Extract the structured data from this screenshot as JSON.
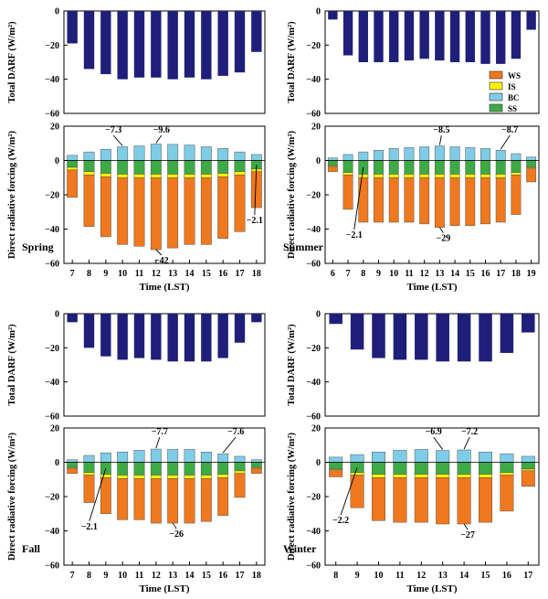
{
  "chart_data": [
    {
      "type": "bar",
      "season": "Spring",
      "x": [
        7,
        8,
        9,
        10,
        11,
        12,
        13,
        14,
        15,
        16,
        17,
        18
      ],
      "xlabel": "Time (LST)",
      "total": {
        "ylabel": "Total DARF (W/m²)",
        "ylim": [
          -60,
          0
        ],
        "yticks": [
          0,
          -20,
          -40,
          -60
        ],
        "values": [
          -19,
          -34,
          -37,
          -40,
          -39,
          -39,
          -40,
          -39,
          -40,
          -38,
          -36,
          -24
        ]
      },
      "components": {
        "ylabel": "Direct radiative forcing (W/m²)",
        "ylim": [
          -60,
          20
        ],
        "yticks": [
          20,
          0,
          -20,
          -40,
          -60
        ],
        "series": [
          {
            "name": "WS",
            "values": [
              -16,
              -30,
              -35,
              -39,
              -40,
              -42,
              -41,
              -39,
              -39,
              -36,
              -33,
              -21
            ]
          },
          {
            "name": "IS",
            "values": [
              -1.5,
              -2,
              -2,
              -2,
              -2,
              -2,
              -2,
              -2,
              -2,
              -2,
              -2,
              -1.5
            ]
          },
          {
            "name": "BC",
            "values": [
              3,
              5,
              6.5,
              8,
              8.5,
              9.6,
              9.4,
              9,
              8,
              7,
              5,
              3.5
            ]
          },
          {
            "name": "SS",
            "values": [
              -4,
              -6.5,
              -7.5,
              -8,
              -8,
              -8,
              -8,
              -8,
              -8,
              -7.5,
              -6.5,
              -5
            ]
          }
        ],
        "annotations": [
          {
            "text": "-7.3",
            "x": 10
          },
          {
            "text": "-9.6",
            "x": 12
          },
          {
            "text": "-2.1",
            "x": 18
          },
          {
            "text": "-42",
            "x": 12
          }
        ]
      }
    },
    {
      "type": "bar",
      "season": "Summer",
      "x": [
        6,
        7,
        8,
        9,
        10,
        11,
        12,
        13,
        14,
        15,
        16,
        17,
        18,
        19
      ],
      "xlabel": "Time (LST)",
      "total": {
        "ylabel": "Total DARF (W/m²)",
        "ylim": [
          -60,
          0
        ],
        "yticks": [
          0,
          -20,
          -40,
          -60
        ],
        "values": [
          -5,
          -26,
          -30,
          -30,
          -30,
          -29,
          -28,
          -29,
          -30,
          -30,
          -31,
          -31,
          -28,
          -11
        ]
      },
      "components": {
        "ylabel": "Direct radiative forcing (W/m²)",
        "ylim": [
          -60,
          20
        ],
        "yticks": [
          20,
          0,
          -20,
          -40,
          -60
        ],
        "series": [
          {
            "name": "WS",
            "values": [
              -3,
              -20,
              -26,
              -26,
              -26,
              -26,
              -27,
              -29,
              -28,
              -28,
              -27,
              -26,
              -23,
              -8
            ]
          },
          {
            "name": "IS",
            "values": [
              -0.5,
              -1.5,
              -2,
              -2,
              -2,
              -2,
              -2,
              -2,
              -2,
              -2,
              -2,
              -2,
              -1.5,
              -0.5
            ]
          },
          {
            "name": "BC",
            "values": [
              1.5,
              3.5,
              5,
              6,
              7,
              7.5,
              8,
              8.5,
              8,
              7.5,
              7,
              6,
              4,
              2
            ]
          },
          {
            "name": "SS",
            "values": [
              -3,
              -7,
              -8,
              -8,
              -8,
              -8,
              -8,
              -8,
              -8,
              -8,
              -8,
              -8,
              -7,
              -4
            ]
          }
        ],
        "annotations": [
          {
            "text": "-8.5",
            "x": 13
          },
          {
            "text": "-8.7",
            "x": 17
          },
          {
            "text": "-2.1",
            "x": 8
          },
          {
            "text": "-29",
            "x": 13
          }
        ]
      }
    },
    {
      "type": "bar",
      "season": "Fall",
      "x": [
        7,
        8,
        9,
        10,
        11,
        12,
        13,
        14,
        15,
        16,
        17,
        18
      ],
      "xlabel": "Time (LST)",
      "total": {
        "ylabel": "Total DARF (W/m²)",
        "ylim": [
          -60,
          0
        ],
        "yticks": [
          0,
          -20,
          -40,
          -60
        ],
        "values": [
          -5,
          -20,
          -25,
          -27,
          -26,
          -27,
          -28,
          -28,
          -28,
          -26,
          -17,
          -5
        ]
      },
      "components": {
        "ylabel": "Direct radiative forcing (W/m²)",
        "ylim": [
          -60,
          20
        ],
        "yticks": [
          20,
          0,
          -20,
          -40,
          -60
        ],
        "series": [
          {
            "name": "WS",
            "values": [
              -3,
              -16,
              -21,
              -24,
              -24,
              -26,
              -26,
              -26,
              -25,
              -22,
              -14,
              -3
            ]
          },
          {
            "name": "IS",
            "values": [
              -0.5,
              -1.5,
              -2,
              -2,
              -2,
              -2,
              -2,
              -2,
              -2,
              -2,
              -1.5,
              -0.5
            ]
          },
          {
            "name": "BC",
            "values": [
              1.5,
              4,
              5.5,
              6,
              7,
              7.7,
              7.5,
              7.5,
              6,
              5,
              3.5,
              1.5
            ]
          },
          {
            "name": "SS",
            "values": [
              -3,
              -6,
              -7,
              -7.5,
              -7.5,
              -7.5,
              -7.5,
              -7.5,
              -7.5,
              -7,
              -5,
              -3
            ]
          }
        ],
        "annotations": [
          {
            "text": "-7.7",
            "x": 12
          },
          {
            "text": "-7.6",
            "x": 16
          },
          {
            "text": "-2.1",
            "x": 9
          },
          {
            "text": "-26",
            "x": 13
          }
        ]
      }
    },
    {
      "type": "bar",
      "season": "Winter",
      "x": [
        8,
        9,
        10,
        11,
        12,
        13,
        14,
        15,
        16,
        17
      ],
      "xlabel": "Time (LST)",
      "total": {
        "ylabel": "Total DARF (W/m²)",
        "ylim": [
          -60,
          0
        ],
        "yticks": [
          0,
          -20,
          -40,
          -60
        ],
        "values": [
          -6,
          -21,
          -26,
          -27,
          -27,
          -28,
          -28,
          -28,
          -23,
          -11
        ]
      },
      "components": {
        "ylabel": "Direct radiative forcing (W/m²)",
        "ylim": [
          -60,
          20
        ],
        "yticks": [
          20,
          0,
          -20,
          -40,
          -60
        ],
        "series": [
          {
            "name": "WS",
            "values": [
              -4,
              -19,
              -25,
              -26,
              -26,
              -27,
              -27,
              -26,
              -21,
              -9
            ]
          },
          {
            "name": "IS",
            "values": [
              -0.5,
              -1.5,
              -2,
              -2,
              -2,
              -2,
              -2,
              -2,
              -1.5,
              -1
            ]
          },
          {
            "name": "BC",
            "values": [
              3,
              4.5,
              6,
              7,
              7.5,
              6.9,
              7.2,
              6,
              5,
              3.5
            ]
          },
          {
            "name": "SS",
            "values": [
              -4,
              -6,
              -7,
              -7,
              -7,
              -7,
              -7,
              -7,
              -6,
              -4
            ]
          }
        ],
        "annotations": [
          {
            "text": "-6.9",
            "x": 13
          },
          {
            "text": "-7.2",
            "x": 14
          },
          {
            "text": "-2.2",
            "x": 9
          },
          {
            "text": "-27",
            "x": 14
          }
        ]
      }
    }
  ],
  "legend": {
    "items": [
      {
        "name": "WS",
        "color": "#F0781E"
      },
      {
        "name": "IS",
        "color": "#FFF200"
      },
      {
        "name": "BC",
        "color": "#7FCCE6"
      },
      {
        "name": "SS",
        "color": "#3DAA45"
      }
    ]
  },
  "colors": {
    "total": "#1F1F7A",
    "WS": "#F0781E",
    "IS": "#FFF200",
    "BC": "#7FCCE6",
    "SS": "#3DAA45"
  }
}
